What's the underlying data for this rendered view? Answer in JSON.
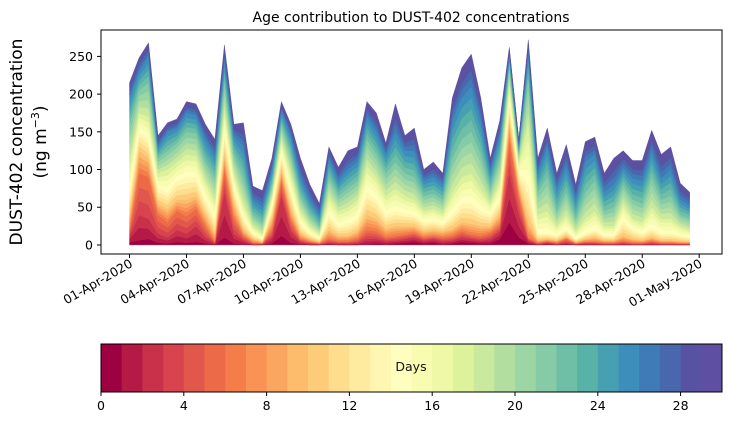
{
  "chart_data": {
    "type": "area",
    "subtype": "stacked-filled-contour",
    "title": "Age contribution to DUST-402 concentrations",
    "xlabel": "",
    "ylabel_line1": "DUST-402 concentration",
    "ylabel_line2_prefix": "(ng m",
    "ylabel_line2_sup": "−3",
    "ylabel_line2_suffix": ")",
    "ylim": [
      -12,
      285
    ],
    "yticks": [
      0,
      50,
      100,
      150,
      200,
      250
    ],
    "xlim_days": [
      -1.5,
      31.2
    ],
    "x_start": "01-Apr-2020",
    "x_step_days": 0.5,
    "xticks": [
      {
        "day": 0,
        "label": "01-Apr-2020"
      },
      {
        "day": 3,
        "label": "04-Apr-2020"
      },
      {
        "day": 6,
        "label": "07-Apr-2020"
      },
      {
        "day": 9,
        "label": "10-Apr-2020"
      },
      {
        "day": 12,
        "label": "13-Apr-2020"
      },
      {
        "day": 15,
        "label": "16-Apr-2020"
      },
      {
        "day": 18,
        "label": "19-Apr-2020"
      },
      {
        "day": 21,
        "label": "22-Apr-2020"
      },
      {
        "day": 24,
        "label": "25-Apr-2020"
      },
      {
        "day": 27,
        "label": "28-Apr-2020"
      },
      {
        "day": 30,
        "label": "01-May-2020"
      }
    ],
    "age_boundaries_days": [
      0,
      1,
      3,
      6,
      10,
      14,
      18,
      22,
      26,
      30
    ],
    "series_note": "Each timestep: cumulative concentration (ng m-3) of particles with age below each boundary in age_boundaries_days; last value is total.",
    "cumulative": [
      [
        0,
        4,
        12,
        20,
        40,
        70,
        110,
        160,
        195,
        215
      ],
      [
        0,
        6,
        40,
        95,
        125,
        150,
        175,
        205,
        230,
        248
      ],
      [
        0,
        8,
        35,
        90,
        115,
        140,
        170,
        215,
        250,
        268
      ],
      [
        0,
        3,
        15,
        40,
        55,
        75,
        95,
        115,
        130,
        145
      ],
      [
        0,
        2,
        10,
        30,
        48,
        70,
        100,
        125,
        150,
        162
      ],
      [
        0,
        4,
        20,
        45,
        60,
        85,
        110,
        135,
        155,
        167
      ],
      [
        0,
        3,
        15,
        38,
        60,
        90,
        120,
        150,
        175,
        190
      ],
      [
        0,
        4,
        25,
        48,
        65,
        90,
        118,
        148,
        172,
        187
      ],
      [
        0,
        2,
        10,
        25,
        40,
        60,
        85,
        110,
        140,
        160
      ],
      [
        0,
        0,
        2,
        4,
        15,
        35,
        60,
        90,
        118,
        140
      ],
      [
        0,
        10,
        70,
        100,
        120,
        150,
        180,
        215,
        245,
        265
      ],
      [
        0,
        2,
        15,
        35,
        55,
        75,
        95,
        120,
        145,
        160
      ],
      [
        0,
        1,
        6,
        12,
        20,
        35,
        55,
        90,
        130,
        162
      ],
      [
        0,
        0,
        1,
        3,
        8,
        15,
        25,
        40,
        60,
        78
      ],
      [
        0,
        0,
        1,
        2,
        4,
        8,
        15,
        30,
        50,
        72
      ],
      [
        0,
        2,
        10,
        20,
        35,
        50,
        65,
        80,
        100,
        115
      ],
      [
        0,
        12,
        65,
        85,
        100,
        120,
        140,
        160,
        178,
        190
      ],
      [
        0,
        3,
        18,
        32,
        48,
        70,
        95,
        120,
        145,
        160
      ],
      [
        0,
        1,
        4,
        8,
        15,
        28,
        45,
        65,
        90,
        115
      ],
      [
        0,
        0,
        2,
        4,
        8,
        15,
        25,
        40,
        60,
        80
      ],
      [
        0,
        0,
        1,
        2,
        4,
        8,
        15,
        25,
        40,
        55
      ],
      [
        0,
        1,
        3,
        8,
        20,
        40,
        65,
        90,
        115,
        130
      ],
      [
        0,
        0,
        2,
        5,
        12,
        25,
        45,
        65,
        85,
        103
      ],
      [
        0,
        0,
        2,
        5,
        12,
        28,
        50,
        75,
        100,
        125
      ],
      [
        0,
        0,
        3,
        8,
        18,
        35,
        60,
        85,
        110,
        130
      ],
      [
        0,
        1,
        8,
        20,
        40,
        70,
        105,
        140,
        170,
        190
      ],
      [
        0,
        2,
        8,
        18,
        35,
        60,
        90,
        120,
        150,
        175
      ],
      [
        0,
        1,
        5,
        10,
        22,
        40,
        65,
        95,
        120,
        135
      ],
      [
        0,
        2,
        6,
        12,
        25,
        45,
        75,
        110,
        150,
        187
      ],
      [
        0,
        3,
        8,
        14,
        25,
        42,
        65,
        95,
        125,
        145
      ],
      [
        0,
        4,
        10,
        16,
        25,
        40,
        60,
        90,
        125,
        155
      ],
      [
        0,
        2,
        6,
        10,
        18,
        30,
        45,
        65,
        85,
        100
      ],
      [
        0,
        3,
        8,
        12,
        20,
        32,
        48,
        68,
        90,
        110
      ],
      [
        0,
        1,
        5,
        10,
        18,
        28,
        42,
        60,
        80,
        95
      ],
      [
        0,
        2,
        6,
        12,
        22,
        40,
        70,
        115,
        165,
        195
      ],
      [
        0,
        4,
        10,
        18,
        30,
        55,
        90,
        140,
        195,
        235
      ],
      [
        0,
        3,
        8,
        14,
        28,
        55,
        95,
        150,
        210,
        253
      ],
      [
        0,
        2,
        6,
        12,
        25,
        45,
        75,
        120,
        165,
        195
      ],
      [
        0,
        2,
        8,
        16,
        25,
        40,
        55,
        75,
        98,
        115
      ],
      [
        0,
        8,
        18,
        26,
        40,
        60,
        85,
        115,
        145,
        165
      ],
      [
        0,
        30,
        95,
        140,
        165,
        190,
        215,
        238,
        252,
        262
      ],
      [
        0,
        10,
        40,
        65,
        80,
        95,
        110,
        122,
        133,
        140
      ],
      [
        0,
        2,
        6,
        10,
        30,
        80,
        160,
        220,
        255,
        272
      ],
      [
        0,
        0,
        1,
        3,
        6,
        15,
        40,
        70,
        95,
        115
      ],
      [
        0,
        1,
        3,
        5,
        8,
        15,
        45,
        90,
        130,
        155
      ],
      [
        0,
        0,
        1,
        3,
        6,
        12,
        25,
        45,
        75,
        95
      ],
      [
        0,
        1,
        3,
        8,
        12,
        20,
        40,
        70,
        105,
        133
      ],
      [
        0,
        0,
        1,
        2,
        4,
        8,
        18,
        35,
        60,
        80
      ],
      [
        0,
        0,
        2,
        4,
        8,
        15,
        35,
        70,
        110,
        137
      ],
      [
        0,
        0,
        2,
        4,
        10,
        20,
        45,
        85,
        120,
        143
      ],
      [
        0,
        0,
        1,
        3,
        6,
        12,
        25,
        45,
        70,
        95
      ],
      [
        0,
        0,
        1,
        3,
        6,
        12,
        25,
        50,
        80,
        115
      ],
      [
        0,
        0,
        2,
        5,
        12,
        32,
        55,
        80,
        102,
        125
      ],
      [
        0,
        0,
        1,
        3,
        8,
        20,
        35,
        60,
        88,
        112
      ],
      [
        0,
        0,
        1,
        3,
        6,
        15,
        30,
        55,
        85,
        112
      ],
      [
        0,
        0,
        2,
        5,
        10,
        22,
        50,
        90,
        125,
        152
      ],
      [
        0,
        0,
        1,
        3,
        6,
        15,
        35,
        60,
        88,
        120
      ],
      [
        0,
        0,
        1,
        3,
        6,
        15,
        35,
        65,
        100,
        130
      ],
      [
        0,
        0,
        1,
        2,
        5,
        12,
        25,
        40,
        60,
        82
      ],
      [
        0,
        0,
        1,
        2,
        4,
        10,
        20,
        35,
        52,
        70
      ]
    ],
    "colorbar": {
      "label": "Days",
      "min": 0,
      "max": 30,
      "levels": 30,
      "ticks": [
        0,
        4,
        8,
        12,
        16,
        20,
        24,
        28
      ],
      "colormap": "Spectral",
      "colors": [
        "#9e0142",
        "#b51945",
        "#c9304a",
        "#d8434e",
        "#e2574c",
        "#ec6a48",
        "#f47d4a",
        "#f89355",
        "#fba660",
        "#fdbb6c",
        "#fdcc7b",
        "#fedd8d",
        "#feeb9f",
        "#fff6b1",
        "#fffebe",
        "#f8fcb1",
        "#eef8a6",
        "#def29c",
        "#c9e99e",
        "#b2df9f",
        "#9cd6a4",
        "#85cba5",
        "#6ebfa6",
        "#58b2a8",
        "#46a0b1",
        "#3d8ebb",
        "#3f7bb7",
        "#4967ac",
        "#5752a1",
        "#5e4fa2"
      ]
    }
  }
}
